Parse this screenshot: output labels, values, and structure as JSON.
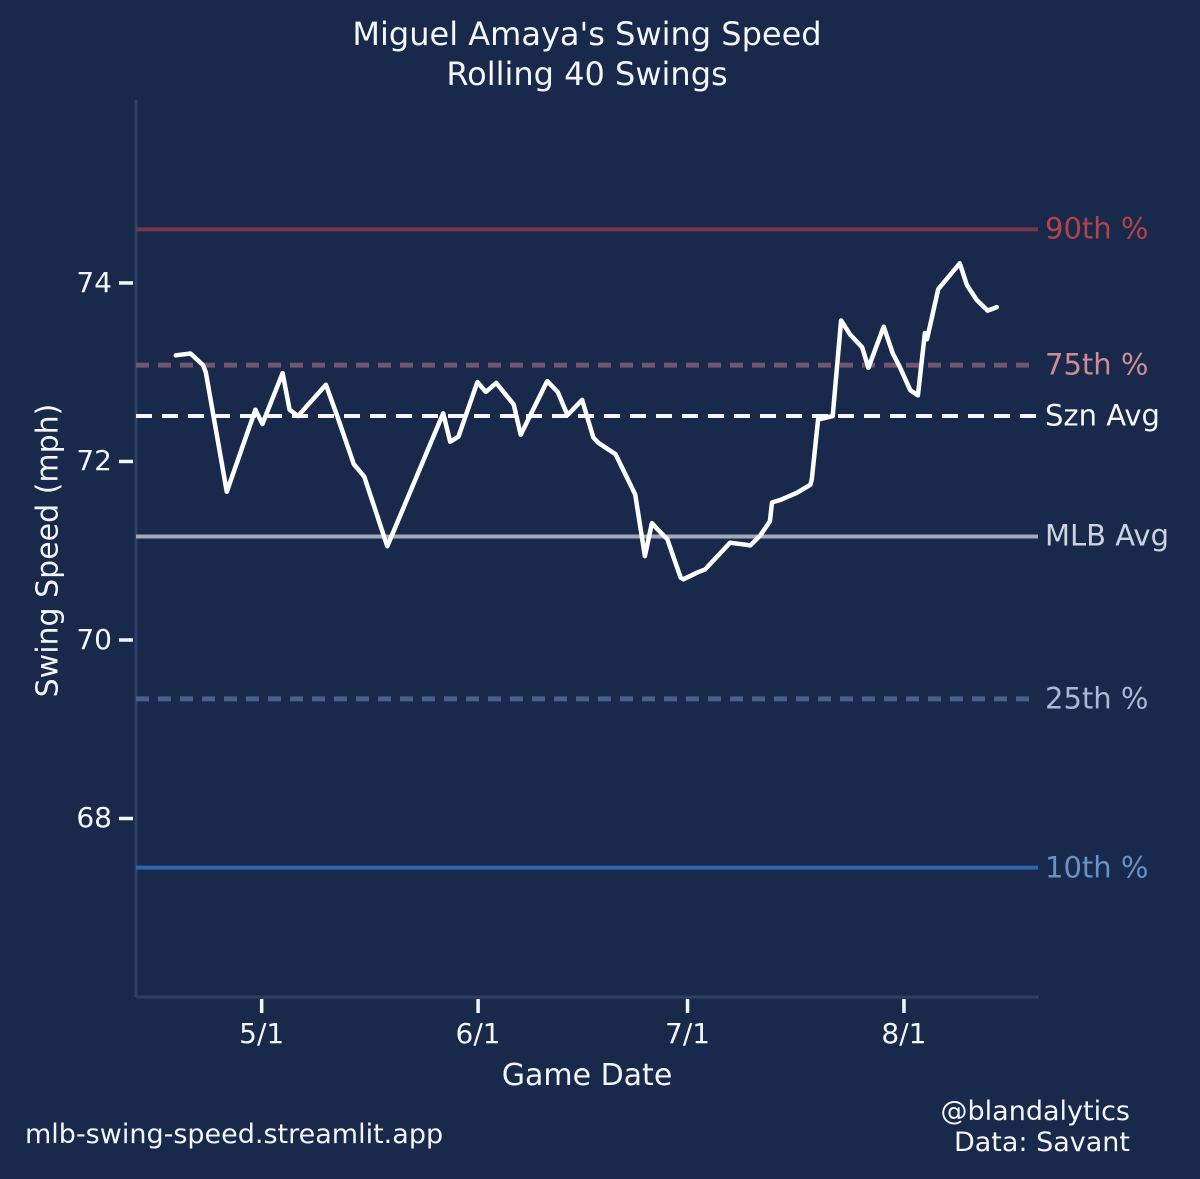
{
  "colors": {
    "background": "#19294c",
    "text": "#f4f6f9",
    "spine": "#2e4066",
    "series_line": "#ffffff"
  },
  "footer": {
    "app_url": "mlb-swing-speed.streamlit.app",
    "credit_handle": "@blandalytics",
    "credit_source": "Data: Savant"
  },
  "chart_data": {
    "type": "line",
    "title": "Miguel Amaya's Swing Speed",
    "subtitle": "Rolling 40 Swings",
    "xlabel": "Game Date",
    "ylabel": "Swing Speed (mph)",
    "grid": false,
    "x_unit": "days since 4/15",
    "x_domain": [
      -2,
      127.2
    ],
    "y_domain": [
      66.0,
      76.05
    ],
    "x_ticks": [
      {
        "label": "5/1",
        "day": 16
      },
      {
        "label": "6/1",
        "day": 47
      },
      {
        "label": "7/1",
        "day": 77
      },
      {
        "label": "8/1",
        "day": 108
      }
    ],
    "y_ticks": [
      68,
      70,
      72,
      74
    ],
    "reference_lines": [
      {
        "name": "90th %",
        "value": 74.6,
        "style": "solid",
        "line_color": "#76384a",
        "label_color": "#b5424a",
        "width": 4
      },
      {
        "name": "75th %",
        "value": 73.08,
        "style": "dashed",
        "line_color": "#72556e",
        "label_color": "#cf8c92",
        "width": 5
      },
      {
        "name": "Szn Avg",
        "value": 72.51,
        "style": "dashed",
        "line_color": "#f4f6f9",
        "label_color": "#f4f6f9",
        "width": 4
      },
      {
        "name": "MLB Avg",
        "value": 71.16,
        "style": "solid",
        "line_color": "#a0aab8",
        "label_color": "#cdd3dc",
        "width": 4
      },
      {
        "name": "25th %",
        "value": 69.34,
        "style": "dashed",
        "line_color": "#49608a",
        "label_color": "#a6bad4",
        "width": 5
      },
      {
        "name": "10th %",
        "value": 67.45,
        "style": "solid",
        "line_color": "#2c64ae",
        "label_color": "#6792c8",
        "width": 4
      }
    ],
    "series": [
      {
        "name": "Rolling 40-swing speed",
        "color": "#ffffff",
        "points": [
          [
            3.7,
            73.19
          ],
          [
            5.8,
            73.21
          ],
          [
            7.6,
            73.08
          ],
          [
            8.0,
            73.0
          ],
          [
            11.0,
            71.66
          ],
          [
            15.1,
            72.58
          ],
          [
            16.1,
            72.42
          ],
          [
            19.0,
            72.99
          ],
          [
            20.0,
            72.58
          ],
          [
            21.2,
            72.51
          ],
          [
            25.2,
            72.86
          ],
          [
            26.9,
            72.49
          ],
          [
            29.2,
            71.97
          ],
          [
            30.7,
            71.83
          ],
          [
            34.0,
            71.05
          ],
          [
            42.0,
            72.54
          ],
          [
            43.0,
            72.22
          ],
          [
            44.2,
            72.28
          ],
          [
            46.9,
            72.89
          ],
          [
            48.1,
            72.78
          ],
          [
            49.6,
            72.88
          ],
          [
            52.1,
            72.64
          ],
          [
            53.1,
            72.3
          ],
          [
            56.9,
            72.9
          ],
          [
            58.4,
            72.78
          ],
          [
            59.8,
            72.52
          ],
          [
            61.9,
            72.69
          ],
          [
            63.5,
            72.27
          ],
          [
            64.2,
            72.21
          ],
          [
            66.7,
            72.08
          ],
          [
            69.5,
            71.63
          ],
          [
            70.9,
            70.94
          ],
          [
            71.9,
            71.31
          ],
          [
            72.7,
            71.24
          ],
          [
            74.1,
            71.13
          ],
          [
            76.0,
            70.7
          ],
          [
            76.4,
            70.68
          ],
          [
            78.5,
            70.76
          ],
          [
            79.5,
            70.79
          ],
          [
            83.1,
            71.09
          ],
          [
            86.0,
            71.06
          ],
          [
            87.4,
            71.17
          ],
          [
            88.8,
            71.33
          ],
          [
            89.1,
            71.54
          ],
          [
            90.3,
            71.57
          ],
          [
            92.7,
            71.65
          ],
          [
            94.6,
            71.74
          ],
          [
            94.8,
            71.8
          ],
          [
            95.7,
            72.47
          ],
          [
            97.8,
            72.51
          ],
          [
            99.0,
            73.58
          ],
          [
            100.3,
            73.42
          ],
          [
            102.0,
            73.28
          ],
          [
            102.9,
            73.05
          ],
          [
            105.1,
            73.51
          ],
          [
            106.4,
            73.21
          ],
          [
            107.4,
            73.06
          ],
          [
            108.9,
            72.8
          ],
          [
            110.0,
            72.74
          ],
          [
            111.0,
            73.44
          ],
          [
            111.3,
            73.37
          ],
          [
            112.9,
            73.93
          ],
          [
            114.3,
            74.06
          ],
          [
            116.0,
            74.22
          ],
          [
            117.0,
            73.98
          ],
          [
            118.4,
            73.81
          ],
          [
            120.0,
            73.69
          ],
          [
            121.3,
            73.73
          ]
        ]
      }
    ]
  }
}
